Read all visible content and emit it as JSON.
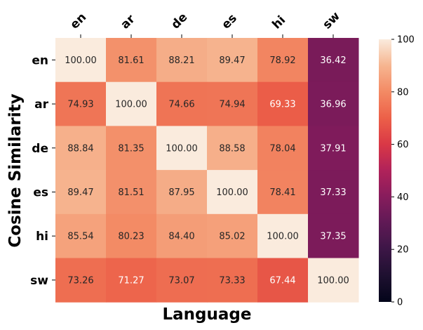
{
  "chart_data": {
    "type": "heatmap",
    "title": "",
    "xlabel": "Language",
    "ylabel": "Cosine Similarity",
    "x_categories": [
      "en",
      "ar",
      "de",
      "es",
      "hi",
      "sw"
    ],
    "y_categories": [
      "en",
      "ar",
      "de",
      "es",
      "hi",
      "sw"
    ],
    "values": [
      [
        100.0,
        81.61,
        88.21,
        89.47,
        78.92,
        36.42
      ],
      [
        74.93,
        100.0,
        74.66,
        74.94,
        69.33,
        36.96
      ],
      [
        88.84,
        81.35,
        100.0,
        88.58,
        78.04,
        37.91
      ],
      [
        89.47,
        81.51,
        87.95,
        100.0,
        78.41,
        37.33
      ],
      [
        85.54,
        80.23,
        84.4,
        85.02,
        100.0,
        37.35
      ],
      [
        73.26,
        71.27,
        73.07,
        73.33,
        67.44,
        100.0
      ]
    ],
    "value_format": "0.00",
    "colormap": "rocket",
    "colorbar": {
      "min": 0,
      "max": 100,
      "ticks": [
        0,
        20,
        40,
        60,
        80,
        100
      ]
    },
    "x_tick_position": "top",
    "x_tick_rotation_deg": 45
  }
}
